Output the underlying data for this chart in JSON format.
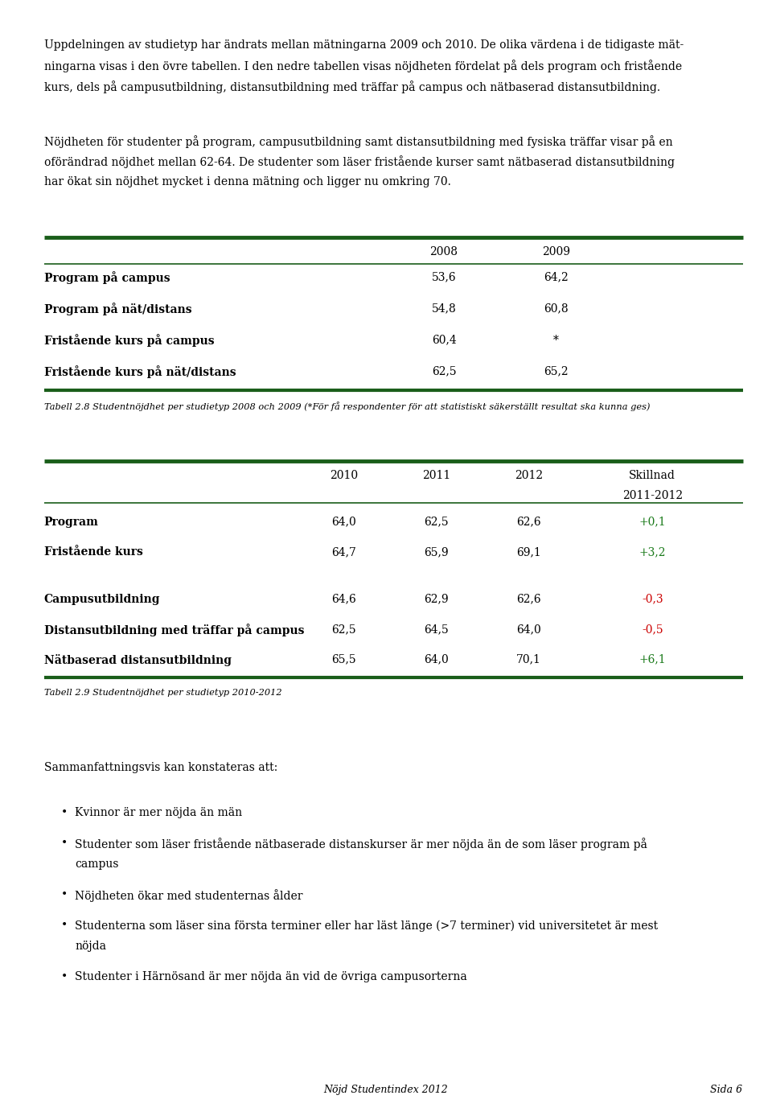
{
  "bg_color": "#ffffff",
  "text_color": "#000000",
  "green_color": "#1a5e1a",
  "green_positive": "#1a7a1a",
  "red_negative": "#cc0000",
  "page_width": 9.6,
  "page_height": 13.92,
  "para1_lines": [
    "Uppdelningen av studietyp har ändrats mellan mätningarna 2009 och 2010. De olika värdena i de tidigaste mät-",
    "ningarna visas i den övre tabellen. I den nedre tabellen visas nöjdheten fördelat på dels program och fristående",
    "kurs, dels på campusutbildning, distansutbildning med träffar på campus och nätbaserad distansutbildning."
  ],
  "para2_lines": [
    "Nöjdheten för studenter på program, campusutbildning samt distansutbildning med fysiska träffar visar på en",
    "oförändrad nöjdhet mellan 62-64. De studenter som läser fristående kurser samt nätbaserad distansutbildning",
    "har ökat sin nöjdhet mycket i denna mätning och ligger nu omkring 70."
  ],
  "table1_col_2008": 0.575,
  "table1_col_2009": 0.72,
  "table1_rows": [
    [
      "Program på campus",
      "53,6",
      "64,2"
    ],
    [
      "Program på nät/distans",
      "54,8",
      "60,8"
    ],
    [
      "Fristående kurs på campus",
      "60,4",
      "*"
    ],
    [
      "Fristående kurs på nät/distans",
      "62,5",
      "65,2"
    ]
  ],
  "table1_caption": "Tabell 2.8 Studentnöjdhet per studietyp 2008 och 2009 (*För få respondenter för att statistiskt säkerställt resultat ska kunna ges)",
  "table2_col_2010": 0.445,
  "table2_col_2011": 0.565,
  "table2_col_2012": 0.685,
  "table2_col_skill": 0.845,
  "table2_rows": [
    [
      "Program",
      "64,0",
      "62,5",
      "62,6",
      "+0,1",
      "green"
    ],
    [
      "Fristående kurs",
      "64,7",
      "65,9",
      "69,1",
      "+3,2",
      "green"
    ],
    null,
    [
      "Campusutbildning",
      "64,6",
      "62,9",
      "62,6",
      "-0,3",
      "red"
    ],
    [
      "Distansutbildning med träffar på campus",
      "62,5",
      "64,5",
      "64,0",
      "-0,5",
      "red"
    ],
    [
      "Nätbaserad distansutbildning",
      "65,5",
      "64,0",
      "70,1",
      "+6,1",
      "green"
    ]
  ],
  "table2_caption": "Tabell 2.9 Studentnöjdhet per studietyp 2010-2012",
  "summary_title": "Sammanfattningsvis kan konstateras att:",
  "bullet_points": [
    [
      "Kvinnor är mer nöjda än män"
    ],
    [
      "Studenter som läser fristående nätbaserade distanskurser är mer nöjda än de som läser program på",
      "campus"
    ],
    [
      "Nöjdheten ökar med studenternas ålder"
    ],
    [
      "Studenterna som läser sina första terminer eller har läst länge (>7 terminer) vid universitetet är mest",
      "nöjda"
    ],
    [
      "Studenter i Härnösand är mer nöjda än vid de övriga campusorterna"
    ]
  ],
  "footer_left": "Nöjd Studentindex 2012",
  "footer_right": "Sida 6"
}
